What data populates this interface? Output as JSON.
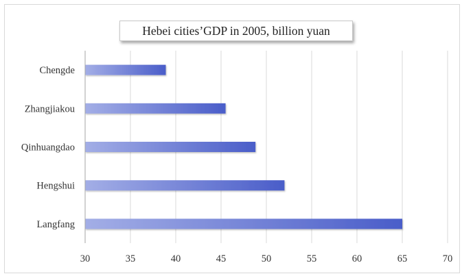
{
  "chart_data": {
    "type": "bar",
    "orientation": "horizontal",
    "title": "Hebei cities’GDP in 2005, billion yuan",
    "categories": [
      "Chengde",
      "Zhangjiakou",
      "Qinhuangdao",
      "Hengshui",
      "Langfang"
    ],
    "values": [
      38.9,
      45.5,
      48.8,
      52.0,
      65.0
    ],
    "xlabel": "",
    "ylabel": "",
    "xlim": [
      30,
      70
    ],
    "x_ticks": [
      "30",
      "35",
      "40",
      "45",
      "50",
      "55",
      "60",
      "65",
      "70"
    ],
    "grid": "vertical",
    "legend": "none",
    "colors": {
      "bar_start": "#a3aee6",
      "bar_end": "#4a5dc9",
      "grid": "#d9d9d9",
      "axis": "#a6a6a6"
    }
  }
}
